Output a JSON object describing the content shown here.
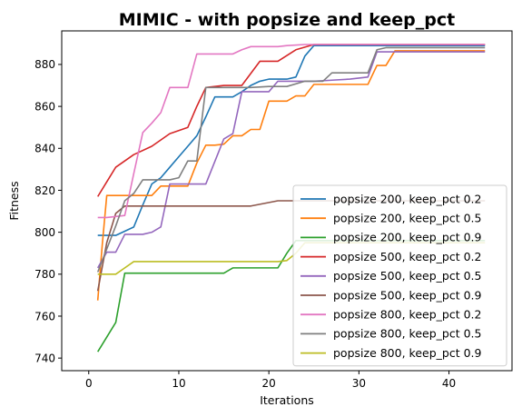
{
  "chart_data": {
    "type": "line",
    "title": "MIMIC - with popsize and keep_pct",
    "xlabel": "Iterations",
    "ylabel": "Fitness",
    "xlim": [
      -3,
      47
    ],
    "ylim": [
      734,
      896
    ],
    "xticks": [
      0,
      10,
      20,
      30,
      40
    ],
    "yticks": [
      740,
      760,
      780,
      800,
      820,
      840,
      860,
      880
    ],
    "grid": false,
    "legend_position": "lower-right",
    "series": [
      {
        "name": "popsize 200, keep_pct 0.2",
        "color": "#1f77b4",
        "points": [
          [
            1,
            798.5
          ],
          [
            2,
            798.5
          ],
          [
            3,
            798.5
          ],
          [
            4,
            800.5
          ],
          [
            5,
            802.5
          ],
          [
            6,
            813
          ],
          [
            7,
            823
          ],
          [
            8,
            826
          ],
          [
            9,
            831
          ],
          [
            10,
            836
          ],
          [
            11,
            841
          ],
          [
            12,
            846
          ],
          [
            13,
            855
          ],
          [
            14,
            864.5
          ],
          [
            15,
            864.5
          ],
          [
            16,
            864.5
          ],
          [
            17,
            867
          ],
          [
            18,
            870
          ],
          [
            19,
            872
          ],
          [
            20,
            873
          ],
          [
            21,
            873
          ],
          [
            22,
            873
          ],
          [
            23,
            874
          ],
          [
            24,
            884
          ],
          [
            25,
            889
          ],
          [
            30,
            889
          ],
          [
            44,
            889
          ]
        ]
      },
      {
        "name": "popsize 200, keep_pct 0.5",
        "color": "#ff7f0e",
        "points": [
          [
            1,
            767.5
          ],
          [
            1.5,
            794
          ],
          [
            2,
            817.5
          ],
          [
            7,
            817.5
          ],
          [
            8,
            822
          ],
          [
            11,
            822
          ],
          [
            12,
            833
          ],
          [
            13,
            841.5
          ],
          [
            14,
            841.5
          ],
          [
            15,
            842
          ],
          [
            16,
            846
          ],
          [
            17,
            846
          ],
          [
            18,
            849
          ],
          [
            19,
            849
          ],
          [
            20,
            862.5
          ],
          [
            22,
            862.5
          ],
          [
            23,
            865
          ],
          [
            24,
            865
          ],
          [
            25,
            870.5
          ],
          [
            31,
            870.5
          ],
          [
            32,
            879.5
          ],
          [
            33,
            879.5
          ],
          [
            34,
            886.5
          ],
          [
            44,
            886.5
          ]
        ]
      },
      {
        "name": "popsize 200, keep_pct 0.9",
        "color": "#2ca02c",
        "points": [
          [
            1,
            743
          ],
          [
            2,
            750
          ],
          [
            3,
            757
          ],
          [
            4,
            780.5
          ],
          [
            15,
            780.5
          ],
          [
            16,
            783
          ],
          [
            21,
            783
          ],
          [
            22,
            790
          ],
          [
            23,
            796
          ],
          [
            24,
            796
          ],
          [
            44,
            796
          ]
        ]
      },
      {
        "name": "popsize 500, keep_pct 0.2",
        "color": "#d62728",
        "points": [
          [
            1,
            817
          ],
          [
            2,
            824
          ],
          [
            3,
            831
          ],
          [
            5,
            837
          ],
          [
            7,
            841
          ],
          [
            9,
            847
          ],
          [
            11,
            850
          ],
          [
            12,
            860
          ],
          [
            13,
            869
          ],
          [
            15,
            870
          ],
          [
            17,
            870
          ],
          [
            19,
            881.5
          ],
          [
            21,
            881.5
          ],
          [
            23,
            887
          ],
          [
            25,
            889.5
          ],
          [
            27,
            889.5
          ],
          [
            44,
            889.5
          ]
        ]
      },
      {
        "name": "popsize 500, keep_pct 0.5",
        "color": "#9467bd",
        "points": [
          [
            1,
            783
          ],
          [
            2,
            790.5
          ],
          [
            3,
            790.5
          ],
          [
            4,
            799
          ],
          [
            5,
            799
          ],
          [
            6,
            799
          ],
          [
            7,
            800
          ],
          [
            8,
            802.5
          ],
          [
            9,
            823
          ],
          [
            13,
            823
          ],
          [
            15,
            844.5
          ],
          [
            16,
            847
          ],
          [
            17,
            867
          ],
          [
            19,
            867
          ],
          [
            20,
            867
          ],
          [
            21,
            872
          ],
          [
            23,
            872
          ],
          [
            25,
            872
          ],
          [
            27,
            872.5
          ],
          [
            29,
            873
          ],
          [
            31,
            874
          ],
          [
            32,
            886
          ],
          [
            44,
            886
          ]
        ]
      },
      {
        "name": "popsize 500, keep_pct 0.9",
        "color": "#8c564b",
        "points": [
          [
            1,
            772
          ],
          [
            2,
            795
          ],
          [
            3,
            809
          ],
          [
            4,
            812.5
          ],
          [
            18,
            812.5
          ],
          [
            21,
            815
          ],
          [
            44,
            815
          ]
        ]
      },
      {
        "name": "popsize 800, keep_pct 0.2",
        "color": "#e377c2",
        "points": [
          [
            1,
            807
          ],
          [
            2,
            807
          ],
          [
            3,
            807.5
          ],
          [
            4,
            808
          ],
          [
            5,
            828
          ],
          [
            6,
            847.5
          ],
          [
            7,
            852
          ],
          [
            8,
            857
          ],
          [
            9,
            869
          ],
          [
            10,
            869
          ],
          [
            11,
            869
          ],
          [
            12,
            885
          ],
          [
            14,
            885
          ],
          [
            16,
            885
          ],
          [
            17,
            887
          ],
          [
            18,
            888.5
          ],
          [
            21,
            888.5
          ],
          [
            22,
            889
          ],
          [
            24,
            889.5
          ],
          [
            44,
            889.5
          ]
        ]
      },
      {
        "name": "popsize 800, keep_pct 0.5",
        "color": "#7f7f7f",
        "points": [
          [
            1,
            781
          ],
          [
            3,
            803
          ],
          [
            4,
            815
          ],
          [
            5,
            818.5
          ],
          [
            6,
            825
          ],
          [
            8,
            825
          ],
          [
            9,
            825
          ],
          [
            10,
            826
          ],
          [
            11,
            834
          ],
          [
            12,
            834
          ],
          [
            13,
            869
          ],
          [
            14,
            869
          ],
          [
            18,
            869
          ],
          [
            20,
            869.5
          ],
          [
            22,
            869.5
          ],
          [
            24,
            872
          ],
          [
            26,
            872
          ],
          [
            27,
            876
          ],
          [
            28,
            876
          ],
          [
            30,
            876
          ],
          [
            31,
            876
          ],
          [
            32,
            887
          ],
          [
            33,
            888
          ],
          [
            44,
            888
          ]
        ]
      },
      {
        "name": "popsize 800, keep_pct 0.9",
        "color": "#bcbd22",
        "points": [
          [
            1,
            780
          ],
          [
            2,
            780
          ],
          [
            3,
            780
          ],
          [
            4,
            783
          ],
          [
            5,
            786
          ],
          [
            21,
            786
          ],
          [
            22,
            786.5
          ],
          [
            23,
            790
          ],
          [
            24,
            795
          ],
          [
            44,
            795
          ]
        ]
      }
    ]
  }
}
